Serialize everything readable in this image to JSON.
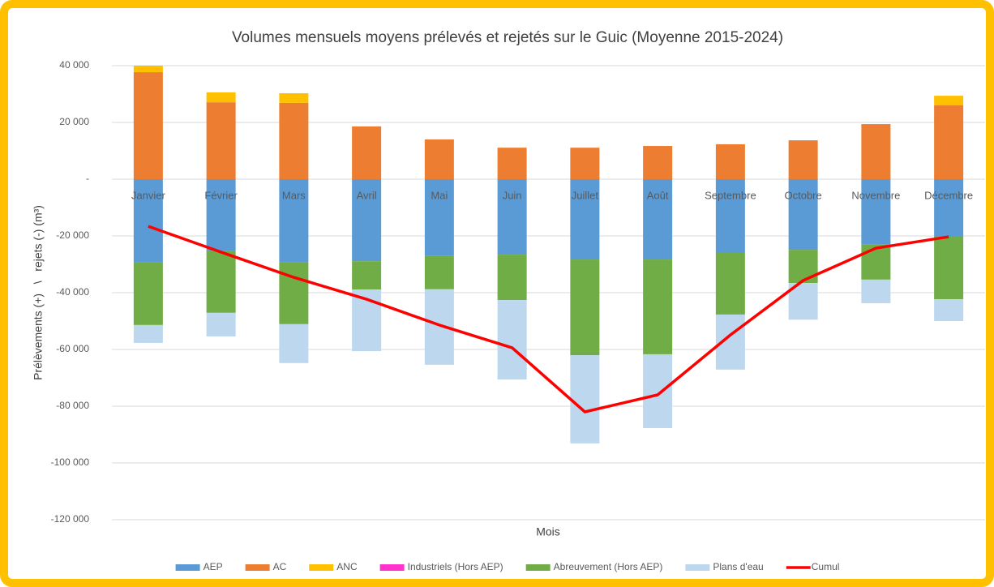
{
  "chart_data": {
    "type": "bar",
    "stacked": true,
    "title": "Volumes mensuels moyens prélevés et rejetés sur le Guic (Moyenne 2015-2024)",
    "x_label": "Mois",
    "y_label": "Prélèvements (+)   \\   rejets (-) (m³)",
    "categories": [
      "Janvier",
      "Février",
      "Mars",
      "Avril",
      "Mai",
      "Juin",
      "Juillet",
      "Août",
      "Septembre",
      "Octobre",
      "Novembre",
      "Décembre"
    ],
    "ylim": [
      -120000,
      40000
    ],
    "yticks": [
      {
        "value": -120000,
        "label": "-120 000"
      },
      {
        "value": -100000,
        "label": "-100 000"
      },
      {
        "value": -80000,
        "label": "-80 000"
      },
      {
        "value": -60000,
        "label": "-60 000"
      },
      {
        "value": -40000,
        "label": "-40 000"
      },
      {
        "value": -20000,
        "label": "-20 000"
      },
      {
        "value": 0,
        "label": "-"
      },
      {
        "value": 20000,
        "label": "20 000"
      },
      {
        "value": 40000,
        "label": "40 000"
      }
    ],
    "grid": true,
    "legend": "bottom",
    "series": [
      {
        "name": "AEP",
        "color": "#5b9bd5",
        "values": [
          -29400,
          -25400,
          -29400,
          -28900,
          -27100,
          -26600,
          -28300,
          -28300,
          -26000,
          -24900,
          -23100,
          -20000
        ]
      },
      {
        "name": "AC",
        "color": "#ed7d31",
        "values": [
          37700,
          27100,
          26900,
          18600,
          14000,
          11100,
          11100,
          11700,
          12300,
          13700,
          19400,
          26000
        ]
      },
      {
        "name": "ANC",
        "color": "#ffc000",
        "values": [
          2300,
          3500,
          3400,
          0,
          0,
          0,
          0,
          0,
          0,
          0,
          0,
          3400
        ]
      },
      {
        "name": "Industriels (Hors AEP)",
        "color": "#ff33cc",
        "values": [
          0,
          0,
          0,
          0,
          0,
          0,
          0,
          0,
          0,
          0,
          0,
          0
        ]
      },
      {
        "name": "Abreuvement (Hors AEP)",
        "color": "#70ad47",
        "values": [
          -22000,
          -21700,
          -21700,
          -10000,
          -11700,
          -16000,
          -33700,
          -33400,
          -21700,
          -11700,
          -12300,
          -22300
        ]
      },
      {
        "name": "Plans d'eau",
        "color": "#bdd7ee",
        "values": [
          -6300,
          -8300,
          -13700,
          -21700,
          -26600,
          -28000,
          -31100,
          -26000,
          -19400,
          -12900,
          -8300,
          -7700
        ]
      },
      {
        "name": "Cumul",
        "color": "#ff0000",
        "type": "line",
        "values": [
          -16600,
          -25700,
          -34600,
          -42300,
          -51400,
          -59400,
          -82000,
          -76000,
          -54900,
          -35700,
          -24300,
          -20300
        ]
      }
    ]
  }
}
